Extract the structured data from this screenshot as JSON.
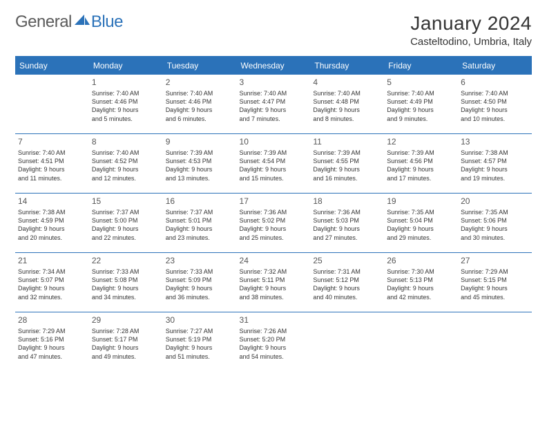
{
  "logo": {
    "part1": "General",
    "part2": "Blue"
  },
  "title": "January 2024",
  "location": "Casteltodino, Umbria, Italy",
  "colors": {
    "brand": "#2b72b9",
    "text": "#333333",
    "bg": "#ffffff"
  },
  "daysOfWeek": [
    "Sunday",
    "Monday",
    "Tuesday",
    "Wednesday",
    "Thursday",
    "Friday",
    "Saturday"
  ],
  "weeks": [
    [
      null,
      {
        "n": "1",
        "sr": "Sunrise: 7:40 AM",
        "ss": "Sunset: 4:46 PM",
        "d1": "Daylight: 9 hours",
        "d2": "and 5 minutes."
      },
      {
        "n": "2",
        "sr": "Sunrise: 7:40 AM",
        "ss": "Sunset: 4:46 PM",
        "d1": "Daylight: 9 hours",
        "d2": "and 6 minutes."
      },
      {
        "n": "3",
        "sr": "Sunrise: 7:40 AM",
        "ss": "Sunset: 4:47 PM",
        "d1": "Daylight: 9 hours",
        "d2": "and 7 minutes."
      },
      {
        "n": "4",
        "sr": "Sunrise: 7:40 AM",
        "ss": "Sunset: 4:48 PM",
        "d1": "Daylight: 9 hours",
        "d2": "and 8 minutes."
      },
      {
        "n": "5",
        "sr": "Sunrise: 7:40 AM",
        "ss": "Sunset: 4:49 PM",
        "d1": "Daylight: 9 hours",
        "d2": "and 9 minutes."
      },
      {
        "n": "6",
        "sr": "Sunrise: 7:40 AM",
        "ss": "Sunset: 4:50 PM",
        "d1": "Daylight: 9 hours",
        "d2": "and 10 minutes."
      }
    ],
    [
      {
        "n": "7",
        "sr": "Sunrise: 7:40 AM",
        "ss": "Sunset: 4:51 PM",
        "d1": "Daylight: 9 hours",
        "d2": "and 11 minutes."
      },
      {
        "n": "8",
        "sr": "Sunrise: 7:40 AM",
        "ss": "Sunset: 4:52 PM",
        "d1": "Daylight: 9 hours",
        "d2": "and 12 minutes."
      },
      {
        "n": "9",
        "sr": "Sunrise: 7:39 AM",
        "ss": "Sunset: 4:53 PM",
        "d1": "Daylight: 9 hours",
        "d2": "and 13 minutes."
      },
      {
        "n": "10",
        "sr": "Sunrise: 7:39 AM",
        "ss": "Sunset: 4:54 PM",
        "d1": "Daylight: 9 hours",
        "d2": "and 15 minutes."
      },
      {
        "n": "11",
        "sr": "Sunrise: 7:39 AM",
        "ss": "Sunset: 4:55 PM",
        "d1": "Daylight: 9 hours",
        "d2": "and 16 minutes."
      },
      {
        "n": "12",
        "sr": "Sunrise: 7:39 AM",
        "ss": "Sunset: 4:56 PM",
        "d1": "Daylight: 9 hours",
        "d2": "and 17 minutes."
      },
      {
        "n": "13",
        "sr": "Sunrise: 7:38 AM",
        "ss": "Sunset: 4:57 PM",
        "d1": "Daylight: 9 hours",
        "d2": "and 19 minutes."
      }
    ],
    [
      {
        "n": "14",
        "sr": "Sunrise: 7:38 AM",
        "ss": "Sunset: 4:59 PM",
        "d1": "Daylight: 9 hours",
        "d2": "and 20 minutes."
      },
      {
        "n": "15",
        "sr": "Sunrise: 7:37 AM",
        "ss": "Sunset: 5:00 PM",
        "d1": "Daylight: 9 hours",
        "d2": "and 22 minutes."
      },
      {
        "n": "16",
        "sr": "Sunrise: 7:37 AM",
        "ss": "Sunset: 5:01 PM",
        "d1": "Daylight: 9 hours",
        "d2": "and 23 minutes."
      },
      {
        "n": "17",
        "sr": "Sunrise: 7:36 AM",
        "ss": "Sunset: 5:02 PM",
        "d1": "Daylight: 9 hours",
        "d2": "and 25 minutes."
      },
      {
        "n": "18",
        "sr": "Sunrise: 7:36 AM",
        "ss": "Sunset: 5:03 PM",
        "d1": "Daylight: 9 hours",
        "d2": "and 27 minutes."
      },
      {
        "n": "19",
        "sr": "Sunrise: 7:35 AM",
        "ss": "Sunset: 5:04 PM",
        "d1": "Daylight: 9 hours",
        "d2": "and 29 minutes."
      },
      {
        "n": "20",
        "sr": "Sunrise: 7:35 AM",
        "ss": "Sunset: 5:06 PM",
        "d1": "Daylight: 9 hours",
        "d2": "and 30 minutes."
      }
    ],
    [
      {
        "n": "21",
        "sr": "Sunrise: 7:34 AM",
        "ss": "Sunset: 5:07 PM",
        "d1": "Daylight: 9 hours",
        "d2": "and 32 minutes."
      },
      {
        "n": "22",
        "sr": "Sunrise: 7:33 AM",
        "ss": "Sunset: 5:08 PM",
        "d1": "Daylight: 9 hours",
        "d2": "and 34 minutes."
      },
      {
        "n": "23",
        "sr": "Sunrise: 7:33 AM",
        "ss": "Sunset: 5:09 PM",
        "d1": "Daylight: 9 hours",
        "d2": "and 36 minutes."
      },
      {
        "n": "24",
        "sr": "Sunrise: 7:32 AM",
        "ss": "Sunset: 5:11 PM",
        "d1": "Daylight: 9 hours",
        "d2": "and 38 minutes."
      },
      {
        "n": "25",
        "sr": "Sunrise: 7:31 AM",
        "ss": "Sunset: 5:12 PM",
        "d1": "Daylight: 9 hours",
        "d2": "and 40 minutes."
      },
      {
        "n": "26",
        "sr": "Sunrise: 7:30 AM",
        "ss": "Sunset: 5:13 PM",
        "d1": "Daylight: 9 hours",
        "d2": "and 42 minutes."
      },
      {
        "n": "27",
        "sr": "Sunrise: 7:29 AM",
        "ss": "Sunset: 5:15 PM",
        "d1": "Daylight: 9 hours",
        "d2": "and 45 minutes."
      }
    ],
    [
      {
        "n": "28",
        "sr": "Sunrise: 7:29 AM",
        "ss": "Sunset: 5:16 PM",
        "d1": "Daylight: 9 hours",
        "d2": "and 47 minutes."
      },
      {
        "n": "29",
        "sr": "Sunrise: 7:28 AM",
        "ss": "Sunset: 5:17 PM",
        "d1": "Daylight: 9 hours",
        "d2": "and 49 minutes."
      },
      {
        "n": "30",
        "sr": "Sunrise: 7:27 AM",
        "ss": "Sunset: 5:19 PM",
        "d1": "Daylight: 9 hours",
        "d2": "and 51 minutes."
      },
      {
        "n": "31",
        "sr": "Sunrise: 7:26 AM",
        "ss": "Sunset: 5:20 PM",
        "d1": "Daylight: 9 hours",
        "d2": "and 54 minutes."
      },
      null,
      null,
      null
    ]
  ]
}
